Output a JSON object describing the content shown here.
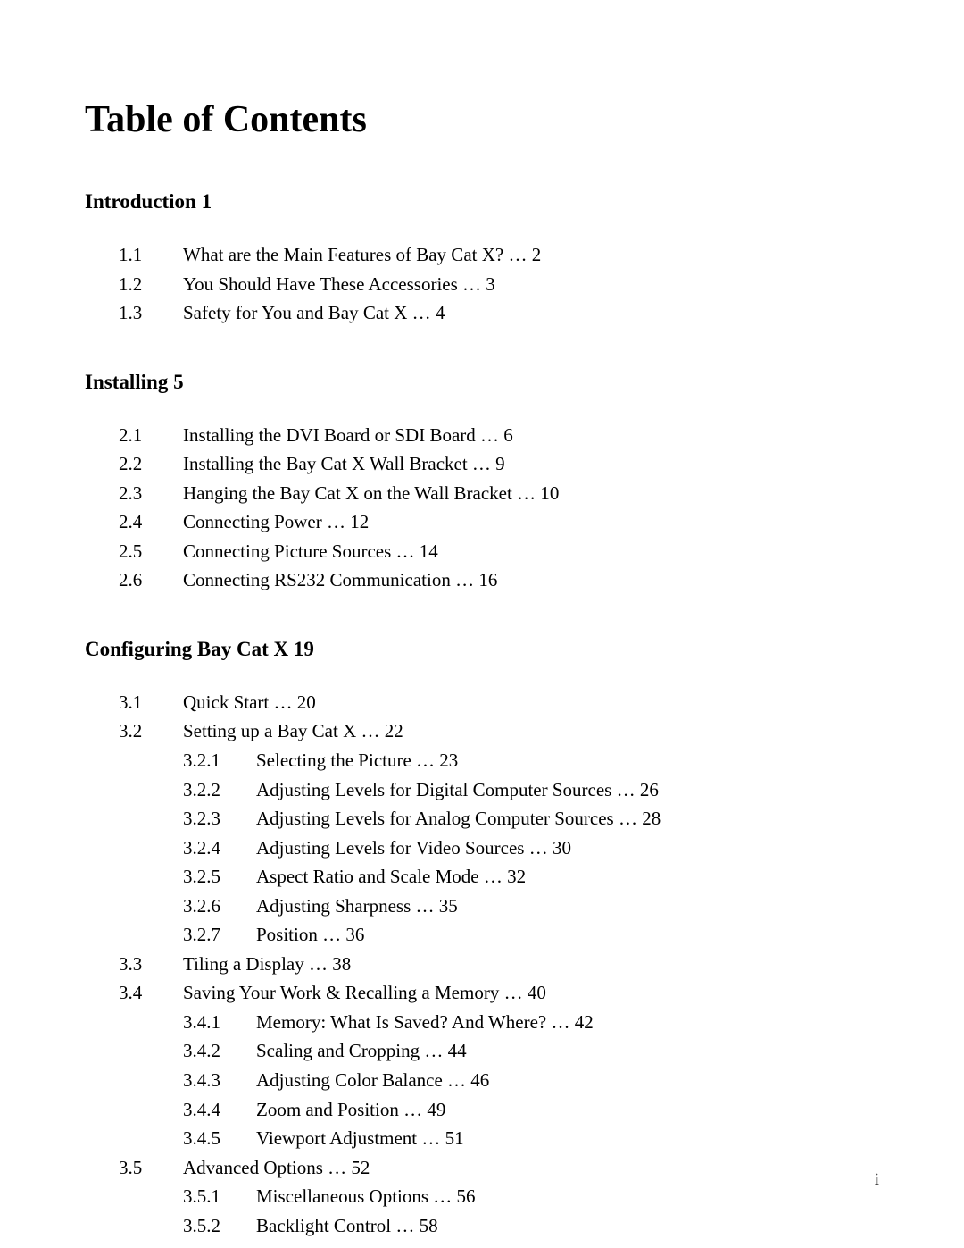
{
  "title": "Table of Contents",
  "pageNumber": "i",
  "sections": [
    {
      "heading": "Introduction 1",
      "entries": [
        {
          "num": "1.1",
          "label": "What are the Main Features of Bay Cat X? … 2"
        },
        {
          "num": "1.2",
          "label": "You Should Have These Accessories … 3"
        },
        {
          "num": "1.3",
          "label": "Safety for You and Bay Cat X … 4"
        }
      ]
    },
    {
      "heading": "Installing 5",
      "entries": [
        {
          "num": "2.1",
          "label": "Installing the DVI Board or SDI Board … 6"
        },
        {
          "num": "2.2",
          "label": "Installing the Bay Cat X Wall Bracket … 9"
        },
        {
          "num": "2.3",
          "label": "Hanging the Bay Cat X on the Wall Bracket … 10"
        },
        {
          "num": "2.4",
          "label": "Connecting Power … 12"
        },
        {
          "num": "2.5",
          "label": "Connecting Picture Sources … 14"
        },
        {
          "num": "2.6",
          "label": "Connecting RS232 Communication … 16"
        }
      ]
    },
    {
      "heading": "Configuring Bay Cat X 19",
      "entries": [
        {
          "num": "3.1",
          "label": "Quick Start … 20"
        },
        {
          "num": "3.2",
          "label": "Setting up a Bay Cat X … 22",
          "sub": [
            {
              "num": "3.2.1",
              "label": "Selecting the Picture … 23"
            },
            {
              "num": "3.2.2",
              "label": "Adjusting Levels for Digital Computer Sources … 26"
            },
            {
              "num": "3.2.3",
              "label": "Adjusting Levels for Analog Computer Sources … 28"
            },
            {
              "num": "3.2.4",
              "label": "Adjusting Levels for Video Sources … 30"
            },
            {
              "num": "3.2.5",
              "label": "Aspect Ratio and Scale Mode … 32"
            },
            {
              "num": "3.2.6",
              "label": "Adjusting Sharpness … 35"
            },
            {
              "num": "3.2.7",
              "label": "Position … 36"
            }
          ]
        },
        {
          "num": "3.3",
          "label": "Tiling a Display … 38"
        },
        {
          "num": "3.4",
          "label": "Saving Your Work & Recalling a Memory … 40",
          "sub": [
            {
              "num": "3.4.1",
              "label": "Memory: What Is Saved? And Where? … 42"
            },
            {
              "num": "3.4.2",
              "label": "Scaling and Cropping … 44"
            },
            {
              "num": "3.4.3",
              "label": "Adjusting Color Balance … 46"
            },
            {
              "num": "3.4.4",
              "label": "Zoom and Position … 49"
            },
            {
              "num": "3.4.5",
              "label": "Viewport Adjustment … 51"
            }
          ]
        },
        {
          "num": "3.5",
          "label": "Advanced Options … 52",
          "sub": [
            {
              "num": "3.5.1",
              "label": "Miscellaneous Options … 56"
            },
            {
              "num": "3.5.2",
              "label": "Backlight Control … 58"
            }
          ]
        }
      ]
    }
  ]
}
